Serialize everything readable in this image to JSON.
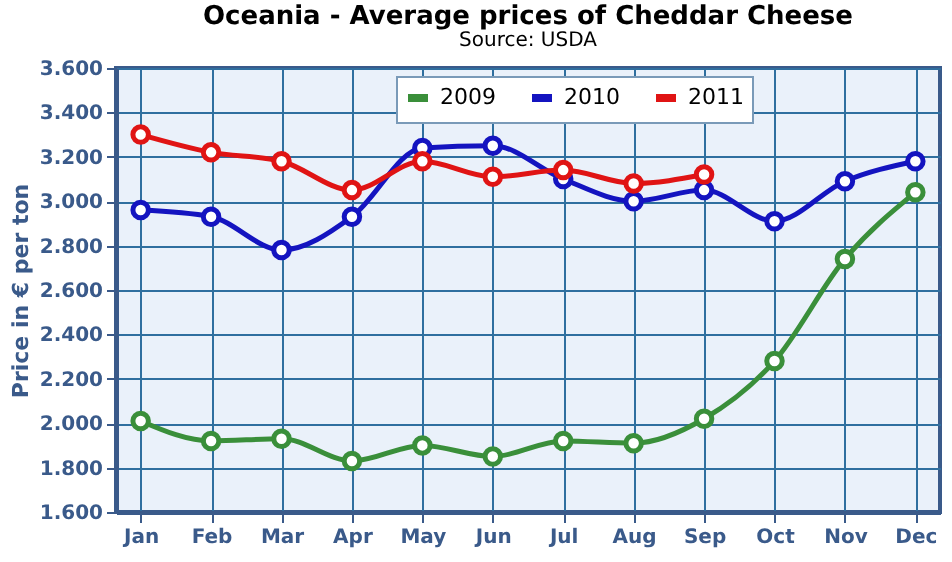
{
  "chart_data": {
    "type": "line",
    "title": "Oceania - Average prices of Cheddar Cheese",
    "subtitle": "Source: USDA",
    "ylabel": "Price in € per ton",
    "categories": [
      "Jan",
      "Feb",
      "Mar",
      "Apr",
      "May",
      "Jun",
      "Jul",
      "Aug",
      "Sep",
      "Oct",
      "Nov",
      "Dec"
    ],
    "series": [
      {
        "name": "2009",
        "color": "#3a8f3a",
        "values": [
          2010,
          1920,
          1930,
          1830,
          1900,
          1850,
          1920,
          1910,
          2020,
          2280,
          2740,
          3040
        ]
      },
      {
        "name": "2010",
        "color": "#1414c0",
        "values": [
          2960,
          2930,
          2780,
          2930,
          3240,
          3250,
          3100,
          3000,
          3050,
          2910,
          3090,
          3180
        ]
      },
      {
        "name": "2011",
        "color": "#e01414",
        "values": [
          3300,
          3220,
          3180,
          3050,
          3180,
          3110,
          3140,
          3080,
          3120,
          null,
          null,
          null
        ]
      }
    ],
    "ylim": [
      1600,
      3600
    ],
    "yticks": [
      {
        "value": 1600,
        "label": "1.600"
      },
      {
        "value": 1800,
        "label": "1.800"
      },
      {
        "value": 2000,
        "label": "2.000"
      },
      {
        "value": 2200,
        "label": "2.200"
      },
      {
        "value": 2400,
        "label": "2.400"
      },
      {
        "value": 2600,
        "label": "2.600"
      },
      {
        "value": 2800,
        "label": "2.800"
      },
      {
        "value": 3000,
        "label": "3.000"
      },
      {
        "value": 3200,
        "label": "3.200"
      },
      {
        "value": 3400,
        "label": "3.400"
      },
      {
        "value": 3600,
        "label": "3.600"
      }
    ],
    "grid": true,
    "legend": "top",
    "marker": "circle",
    "line_style": "solid"
  }
}
